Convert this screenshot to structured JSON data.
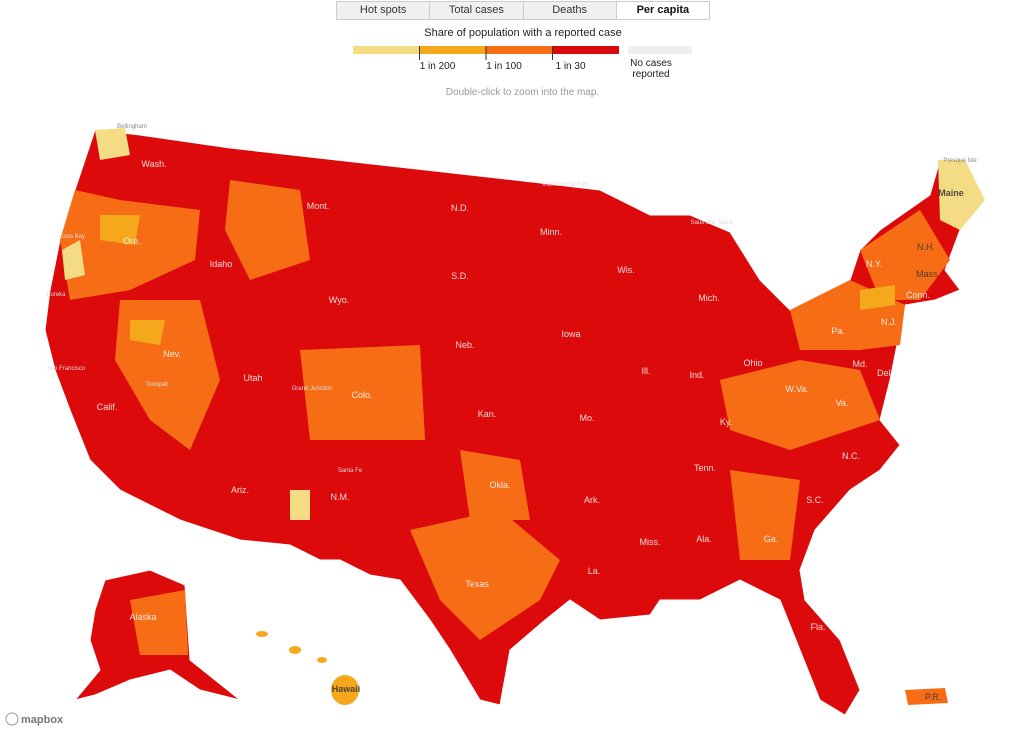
{
  "tabs": [
    "Hot spots",
    "Total cases",
    "Deaths",
    "Per capita"
  ],
  "active_tab": 3,
  "legend": {
    "title": "Share of population with a reported case",
    "colors": [
      "#f3dc83",
      "#f5a81c",
      "#f76d16",
      "#db0b0b"
    ],
    "thresholds": [
      "1 in 200",
      "1 in 100",
      "1 in 30"
    ],
    "no_cases": {
      "label": "No cases reported",
      "color": "#eeeeee"
    }
  },
  "hint": "Double-click to zoom into the map.",
  "map": {
    "state_labels": [
      "Wash.",
      "Ore.",
      "Calif.",
      "Nev.",
      "Idaho",
      "Mont.",
      "Wyo.",
      "Utah",
      "Colo.",
      "Ariz.",
      "N.M.",
      "N.D.",
      "S.D.",
      "Neb.",
      "Kan.",
      "Okla.",
      "Texas",
      "Minn.",
      "Iowa",
      "Mo.",
      "Ark.",
      "La.",
      "Wis.",
      "Ill.",
      "Mich.",
      "Ind.",
      "Ohio",
      "Ky.",
      "Tenn.",
      "Miss.",
      "Ala.",
      "Ga.",
      "Fla.",
      "S.C.",
      "N.C.",
      "Va.",
      "W.Va.",
      "Pa.",
      "N.Y.",
      "Maine",
      "N.H.",
      "Mass.",
      "Conn.",
      "N.J.",
      "Md.",
      "Del.",
      "Alaska",
      "Hawaii",
      "P.R."
    ],
    "city_labels": [
      "Bellingham",
      "Coos Bay",
      "Eureka",
      "San Francisco",
      "Tonopah",
      "Grand Junction",
      "Santa Fe",
      "Presque Isle",
      "Sault Ste. Marie",
      "International Falls"
    ],
    "attribution": "mapbox"
  }
}
